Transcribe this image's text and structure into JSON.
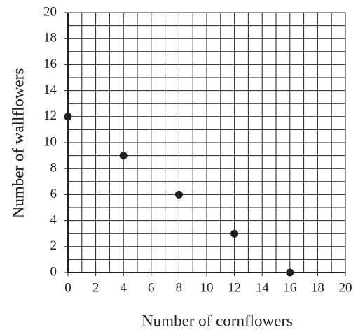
{
  "chart_data": {
    "type": "scatter",
    "x_label": "Number of cornflowers",
    "y_label": "Number of wallflowers",
    "series": [
      {
        "color": "#231f20",
        "x": [
          0,
          4,
          8,
          12,
          16
        ],
        "values": [
          12,
          9,
          6,
          3,
          0
        ]
      }
    ],
    "xlim": [
      0,
      20
    ],
    "xticks": [
      0,
      2,
      4,
      6,
      8,
      10,
      12,
      14,
      16,
      18,
      20
    ],
    "ylim": [
      0,
      20
    ],
    "yticks": [
      0,
      2,
      4,
      6,
      8,
      10,
      12,
      14,
      16,
      18,
      20
    ],
    "grid": true,
    "minor_grid": true
  }
}
